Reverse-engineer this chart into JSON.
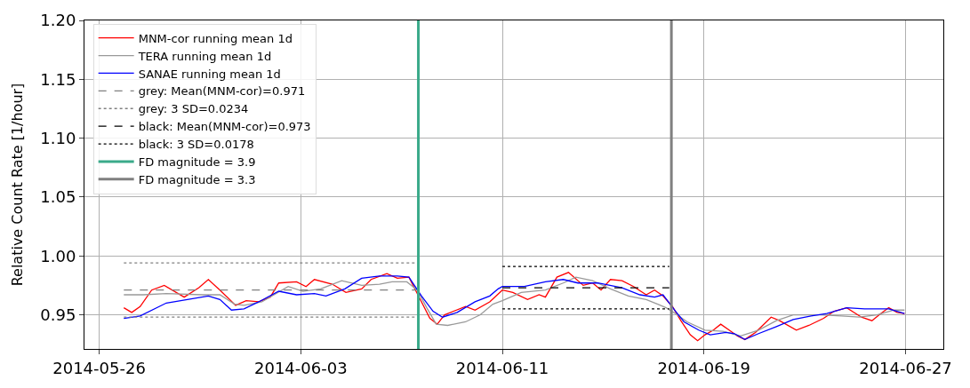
{
  "chart_data": {
    "type": "line",
    "ylabel": "Relative Count Rate [1/hour]",
    "xlim": [
      "2014-05-25T10:00",
      "2014-06-28T12:00"
    ],
    "xticks": [
      "2014-05-26",
      "2014-06-03",
      "2014-06-11",
      "2014-06-19",
      "2014-06-27"
    ],
    "ylim": [
      0.921,
      1.2
    ],
    "yticks": [
      0.95,
      {
        "value": 1.0,
        "label": "1.00"
      },
      1.05,
      {
        "value": 1.1,
        "label": "1.10"
      },
      1.15,
      {
        "value": 1.2,
        "label": "1.20"
      }
    ],
    "grid": true,
    "legend": "top left",
    "marker": "none",
    "series": [
      {
        "name": "MNM-cor running mean 1d",
        "color": "#ff0000",
        "line_style": "solid",
        "x": [
          "2014-05-26T23:30",
          "2014-05-27T07:00",
          "2014-05-27T15:00",
          "2014-05-28T02:00",
          "2014-05-28T14:00",
          "2014-05-29T09:00",
          "2014-05-29T23:00",
          "2014-05-30T08:00",
          "2014-05-30T19:00",
          "2014-05-31T10:00",
          "2014-05-31T20:00",
          "2014-06-01T08:00",
          "2014-06-01T19:00",
          "2014-06-02T03:00",
          "2014-06-02T20:00",
          "2014-06-03T05:00",
          "2014-06-03T13:00",
          "2014-06-04T06:00",
          "2014-06-04T19:00",
          "2014-06-05T10:00",
          "2014-06-05T19:00",
          "2014-06-06T10:00",
          "2014-06-06T20:00",
          "2014-06-07T07:00",
          "2014-06-07T19:00",
          "2014-06-08T03:00",
          "2014-06-08T10:00",
          "2014-06-08T17:00",
          "2014-06-09T13:00",
          "2014-06-09T22:00",
          "2014-06-10T12:00",
          "2014-06-11T00:00",
          "2014-06-11T10:00",
          "2014-06-12T00:00",
          "2014-06-12T11:00",
          "2014-06-12T17:00",
          "2014-06-13T04:00",
          "2014-06-13T15:00",
          "2014-06-14T05:00",
          "2014-06-14T14:00",
          "2014-06-14T22:00",
          "2014-06-15T07:00",
          "2014-06-15T18:00",
          "2014-06-16T05:00",
          "2014-06-16T17:00",
          "2014-06-17T01:00",
          "2014-06-17T09:00",
          "2014-06-17T18:00",
          "2014-06-18T02:00",
          "2014-06-18T11:00",
          "2014-06-18T18:00",
          "2014-06-19T01:00",
          "2014-06-19T09:00",
          "2014-06-19T16:00",
          "2014-06-20T00:00",
          "2014-06-20T08:00",
          "2014-06-20T15:00",
          "2014-06-21T01:00",
          "2014-06-21T16:00",
          "2014-06-22T00:00",
          "2014-06-22T16:00",
          "2014-06-23T04:00",
          "2014-06-23T18:00",
          "2014-06-24T04:00",
          "2014-06-24T16:00",
          "2014-06-25T06:00",
          "2014-06-25T16:00",
          "2014-06-25T23:00",
          "2014-06-26T08:00",
          "2014-06-26T16:00",
          "2014-06-26T23:00"
        ],
        "values": [
          0.956,
          0.952,
          0.957,
          0.971,
          0.975,
          0.965,
          0.973,
          0.98,
          0.971,
          0.958,
          0.962,
          0.961,
          0.965,
          0.977,
          0.978,
          0.974,
          0.98,
          0.976,
          0.969,
          0.972,
          0.98,
          0.985,
          0.981,
          0.982,
          0.961,
          0.947,
          0.942,
          0.95,
          0.957,
          0.954,
          0.961,
          0.971,
          0.969,
          0.963,
          0.967,
          0.965,
          0.982,
          0.986,
          0.975,
          0.977,
          0.971,
          0.98,
          0.979,
          0.974,
          0.967,
          0.971,
          0.966,
          0.957,
          0.945,
          0.933,
          0.928,
          0.933,
          0.937,
          0.942,
          0.937,
          0.932,
          0.929,
          0.935,
          0.948,
          0.945,
          0.937,
          0.941,
          0.947,
          0.953,
          0.956,
          0.948,
          0.945,
          0.95,
          0.956,
          0.952,
          0.951
        ]
      },
      {
        "name": "TERA running mean 1d",
        "color": "#999999",
        "line_style": "solid",
        "x": [
          "2014-05-26T23:30",
          "2014-05-27T18:00",
          "2014-05-28T16:00",
          "2014-05-30T02:00",
          "2014-05-30T19:00",
          "2014-05-31T09:00",
          "2014-05-31T18:00",
          "2014-06-01T11:00",
          "2014-06-02T12:00",
          "2014-06-03T02:00",
          "2014-06-03T19:00",
          "2014-06-04T15:00",
          "2014-06-05T10:00",
          "2014-06-06T03:00",
          "2014-06-06T15:00",
          "2014-06-07T05:00",
          "2014-06-07T15:00",
          "2014-06-08T00:00",
          "2014-06-08T09:00",
          "2014-06-08T20:00",
          "2014-06-09T13:00",
          "2014-06-10T03:00",
          "2014-06-10T15:00",
          "2014-06-11T00:00",
          "2014-06-11T18:00",
          "2014-06-12T17:00",
          "2014-06-13T10:00",
          "2014-06-13T22:00",
          "2014-06-14T14:00",
          "2014-06-15T07:00",
          "2014-06-16T00:00",
          "2014-06-16T17:00",
          "2014-06-17T04:00",
          "2014-06-17T12:00",
          "2014-06-17T21:00",
          "2014-06-18T08:00",
          "2014-06-19T01:00",
          "2014-06-19T18:00",
          "2014-06-20T11:00",
          "2014-06-21T04:00",
          "2014-06-21T21:00",
          "2014-06-22T13:00",
          "2014-06-23T15:00",
          "2014-06-24T11:00",
          "2014-06-25T04:00",
          "2014-06-25T21:00",
          "2014-06-26T13:00",
          "2014-06-26T23:00"
        ],
        "values": [
          0.967,
          0.967,
          0.968,
          0.967,
          0.967,
          0.959,
          0.958,
          0.961,
          0.974,
          0.97,
          0.972,
          0.979,
          0.975,
          0.976,
          0.978,
          0.978,
          0.971,
          0.956,
          0.942,
          0.941,
          0.944,
          0.95,
          0.959,
          0.962,
          0.969,
          0.971,
          0.977,
          0.982,
          0.979,
          0.972,
          0.966,
          0.963,
          0.959,
          0.956,
          0.951,
          0.944,
          0.937,
          0.936,
          0.932,
          0.937,
          0.945,
          0.95,
          0.95,
          0.949,
          0.948,
          0.95,
          0.954,
          0.954
        ]
      },
      {
        "name": "SANAE running mean 1d",
        "color": "#0000ff",
        "line_style": "solid",
        "x": [
          "2014-05-26T23:30",
          "2014-05-27T15:00",
          "2014-05-28T16:00",
          "2014-05-29T12:00",
          "2014-05-30T08:00",
          "2014-05-30T19:00",
          "2014-05-31T06:00",
          "2014-05-31T18:00",
          "2014-06-01T08:00",
          "2014-06-02T03:00",
          "2014-06-02T20:00",
          "2014-06-03T13:00",
          "2014-06-04T00:00",
          "2014-06-04T18:00",
          "2014-06-05T10:00",
          "2014-06-06T03:00",
          "2014-06-06T20:00",
          "2014-06-07T07:00",
          "2014-06-07T19:00",
          "2014-06-08T06:00",
          "2014-06-08T15:00",
          "2014-06-09T05:00",
          "2014-06-09T22:00",
          "2014-06-10T12:00",
          "2014-06-10T20:00",
          "2014-06-11T00:00",
          "2014-06-11T21:00",
          "2014-06-12T17:00",
          "2014-06-13T10:00",
          "2014-06-14T00:00",
          "2014-06-14T19:00",
          "2014-06-15T18:00",
          "2014-06-16T11:00",
          "2014-06-17T01:00",
          "2014-06-17T09:00",
          "2014-06-17T21:00",
          "2014-06-18T05:00",
          "2014-06-18T19:00",
          "2014-06-19T06:00",
          "2014-06-19T21:00",
          "2014-06-20T05:00",
          "2014-06-20T15:00",
          "2014-06-21T04:00",
          "2014-06-21T21:00",
          "2014-06-22T13:00",
          "2014-06-23T06:00",
          "2014-06-23T21:00",
          "2014-06-24T16:00",
          "2014-06-25T09:00",
          "2014-06-26T08:00",
          "2014-06-26T23:00"
        ],
        "values": [
          0.947,
          0.949,
          0.96,
          0.963,
          0.966,
          0.963,
          0.954,
          0.955,
          0.961,
          0.97,
          0.967,
          0.968,
          0.966,
          0.972,
          0.981,
          0.983,
          0.983,
          0.982,
          0.966,
          0.953,
          0.948,
          0.952,
          0.961,
          0.966,
          0.972,
          0.974,
          0.974,
          0.978,
          0.98,
          0.977,
          0.977,
          0.973,
          0.967,
          0.965,
          0.967,
          0.953,
          0.944,
          0.937,
          0.933,
          0.935,
          0.934,
          0.929,
          0.934,
          0.94,
          0.946,
          0.949,
          0.951,
          0.956,
          0.955,
          0.955,
          0.951
        ]
      },
      {
        "name": "grey: Mean(MNM-cor)=0.971",
        "color": "#808080",
        "line_style": "dashed",
        "x": [
          "2014-05-26T23:30",
          "2014-06-07T14:00"
        ],
        "values": [
          0.971,
          0.971
        ]
      },
      {
        "name": "grey: 3 SD=0.0234",
        "color": "#808080",
        "line_style": "dotted",
        "x": [
          "2014-05-26T23:30",
          "2014-06-07T14:00"
        ],
        "values": [
          0.994,
          0.994
        ]
      },
      {
        "color": "#808080",
        "line_style": "dotted",
        "x": [
          "2014-05-26T23:30",
          "2014-06-07T14:00"
        ],
        "values": [
          0.948,
          0.948
        ]
      },
      {
        "name": "black: Mean(MNM-cor)=0.973",
        "color": "#000000",
        "line_style": "dashed",
        "x": [
          "2014-06-11T00:00",
          "2014-06-17T15:00"
        ],
        "values": [
          0.973,
          0.973
        ]
      },
      {
        "name": "black: 3 SD=0.0178",
        "color": "#000000",
        "line_style": "dotted",
        "x": [
          "2014-06-11T00:00",
          "2014-06-17T15:00"
        ],
        "values": [
          0.991,
          0.991
        ]
      },
      {
        "color": "#000000",
        "line_style": "dotted",
        "x": [
          "2014-06-11T00:00",
          "2014-06-17T15:00"
        ],
        "values": [
          0.955,
          0.955
        ]
      },
      {
        "name": "FD magnitude = 3.9",
        "color": "#3aaa8a",
        "line_style": "solid",
        "x": [
          "2014-06-07T16:00",
          "2014-06-07T16:00"
        ],
        "values": [
          0.921,
          1.2
        ]
      },
      {
        "name": "FD magnitude = 3.3",
        "color": "#808080",
        "line_style": "solid",
        "x": [
          "2014-06-17T17:00",
          "2014-06-17T17:00"
        ],
        "values": [
          0.921,
          1.2
        ]
      }
    ]
  }
}
